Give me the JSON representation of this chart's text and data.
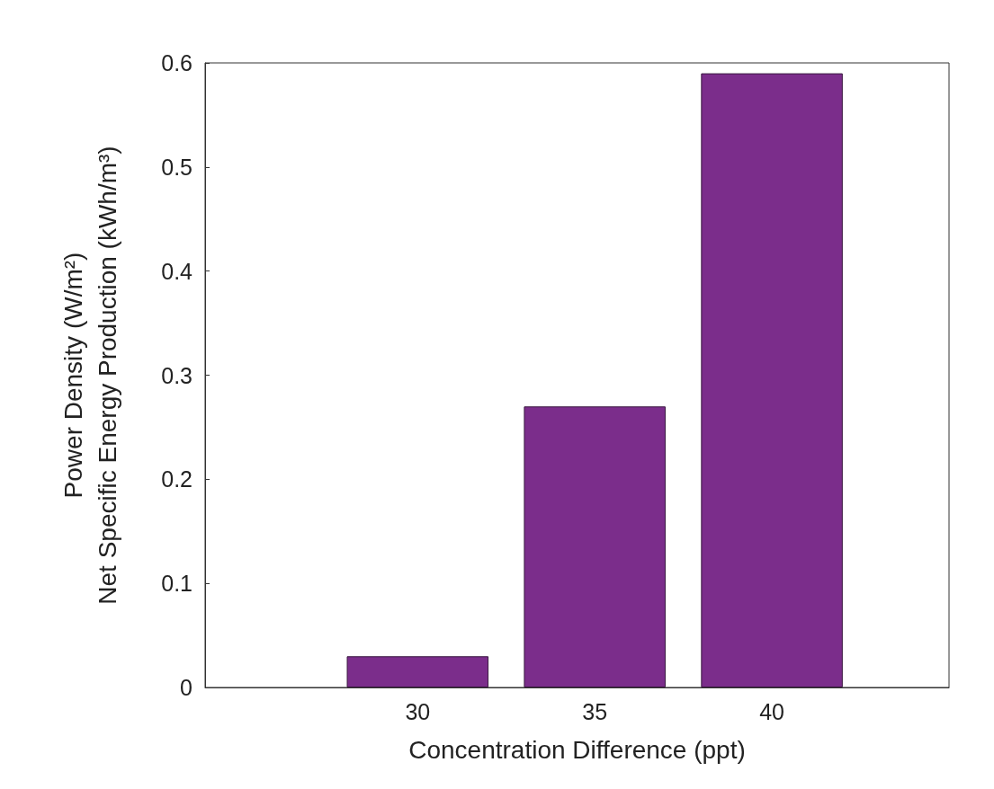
{
  "chart_data": {
    "type": "bar",
    "xlabel": "Concentration Difference (ppt)",
    "ylabel": "Power Density (W/m²)\nNet Specific Energy Production (kWh/m³)",
    "x": [
      30,
      35,
      40
    ],
    "values": [
      0.03,
      0.27,
      0.59
    ],
    "color": "#7b2d8b",
    "xlim": [
      24,
      45
    ],
    "xticks": [
      30,
      35,
      40
    ],
    "ylim": [
      0,
      0.6
    ],
    "yticks": [
      0,
      0.1,
      0.2,
      0.3,
      0.4,
      0.5,
      0.6
    ],
    "grid": false
  }
}
